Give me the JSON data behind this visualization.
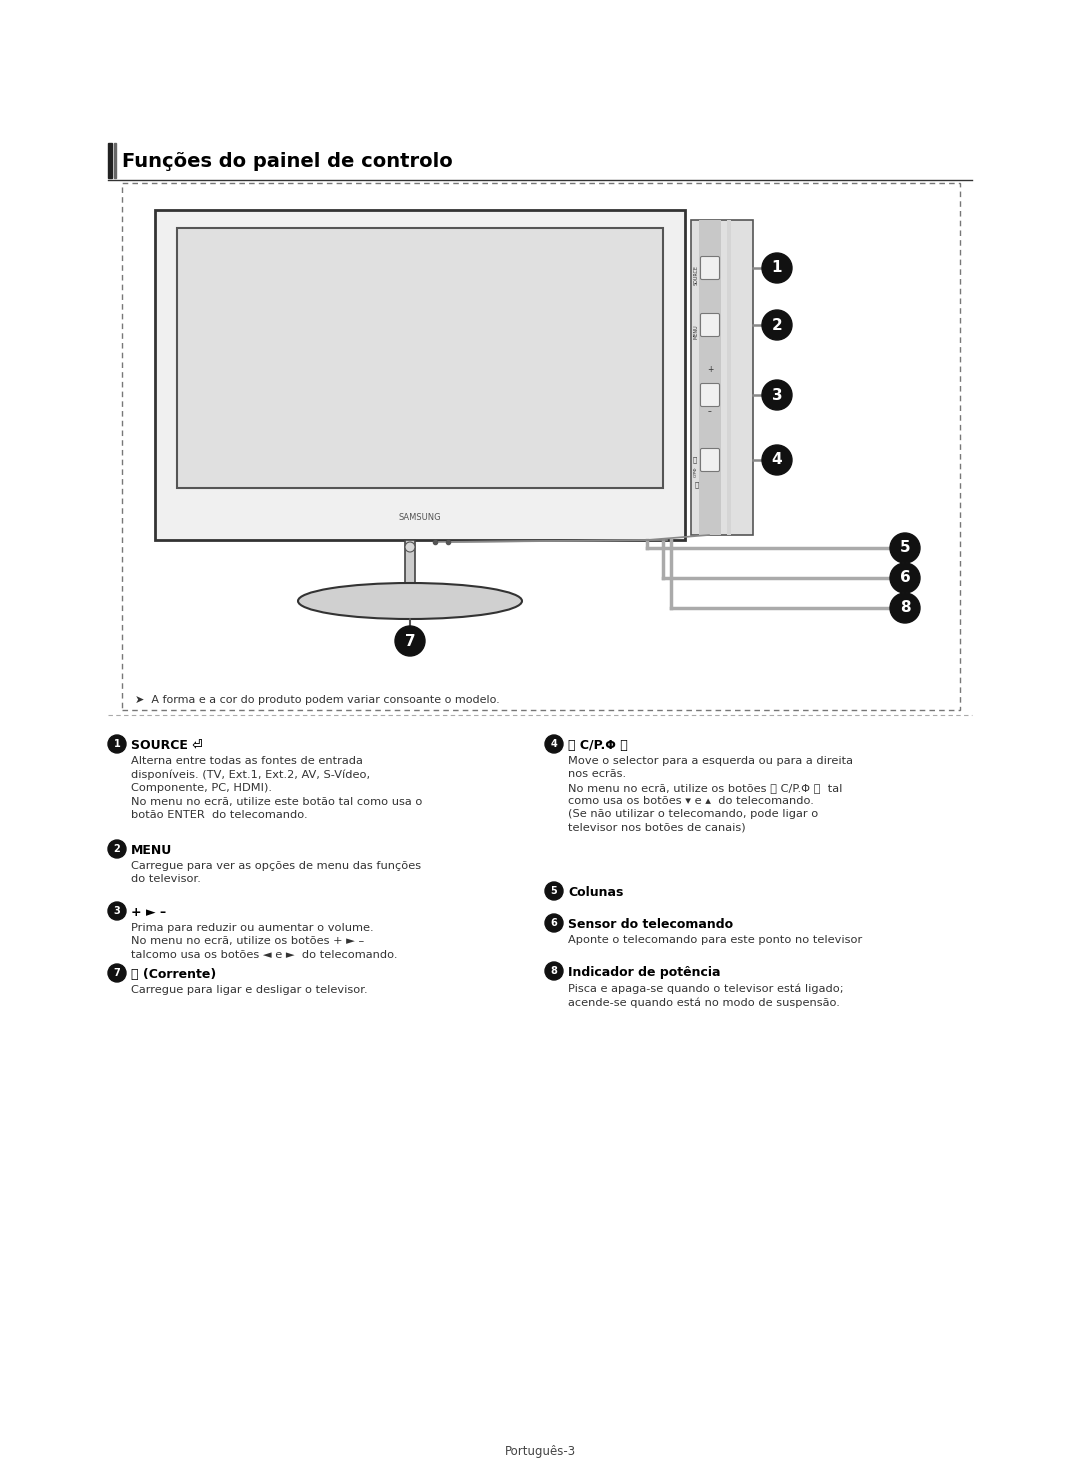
{
  "title": "Funções do painel de controlo",
  "bg_color": "#ffffff",
  "page_footer": "Português-3",
  "note_text": "A forma e a cor do produto podem variar consoante o modelo.",
  "s1_header": "SOURCE",
  "s1_body1": "Alterna entre todas as fontes de entrada",
  "s1_body2": "disponíveis. (TV, Ext.1, Ext.2, AV, S-Vídeo,",
  "s1_body3": "Componente, PC, HDMI).",
  "s1_body4": "No menu no ecrã, utilize este botão tal como usa o",
  "s1_body5": "botão ENTER  do telecomando.",
  "s2_header": "MENU",
  "s2_body1": "Carregue para ver as opções de menu das funções",
  "s2_body2": "do televisor.",
  "s3_header": "+ ► –",
  "s3_body1": "Prima para reduzir ou aumentar o volume.",
  "s3_body2": "No menu no ecrã, utilize os botões + ► –",
  "s3_body3": "talcomo usa os botões ◄ e ►  do telecomando.",
  "s4_header": "〈 C/P.Φ 〉",
  "s4_body1": "Move o selector para a esquerda ou para a direita",
  "s4_body2": "nos ecrãs.",
  "s4_body3": "No menu no ecrã, utilize os botões 〈 C/P.Φ 〉  tal",
  "s4_body4": "como usa os botões ▾ e ▴  do telecomando.",
  "s4_body5": "(Se não utilizar o telecomando, pode ligar o",
  "s4_body6": "televisor nos botões de canais)",
  "s5_header": "Colunas",
  "s6_header": "Sensor do telecomando",
  "s6_body": "Aponte o telecomando para este ponto no televisor",
  "s7_header": "⏻ (Corrente)",
  "s7_body": "Carregue para ligar e desligar o televisor.",
  "s8_header": "Indicador de potência",
  "s8_body1": "Pisca e apaga-se quando o televisor está ligado;",
  "s8_body2": "acende-se quando está no modo de suspensão."
}
